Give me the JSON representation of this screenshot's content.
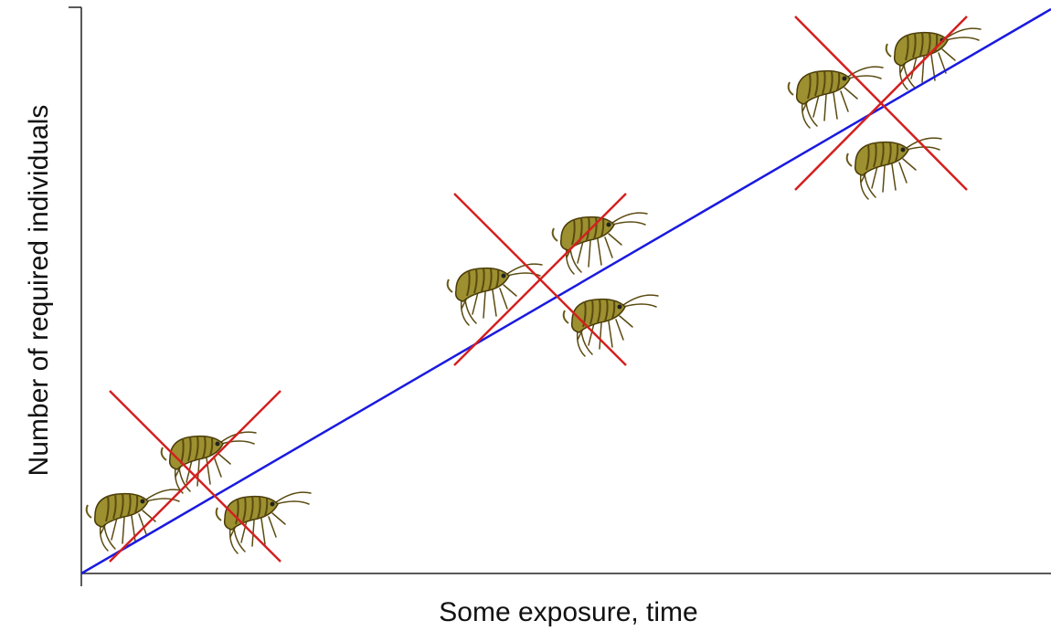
{
  "axes": {
    "x_label": "Some exposure, time",
    "y_label": "Number of required individuals"
  }
}
